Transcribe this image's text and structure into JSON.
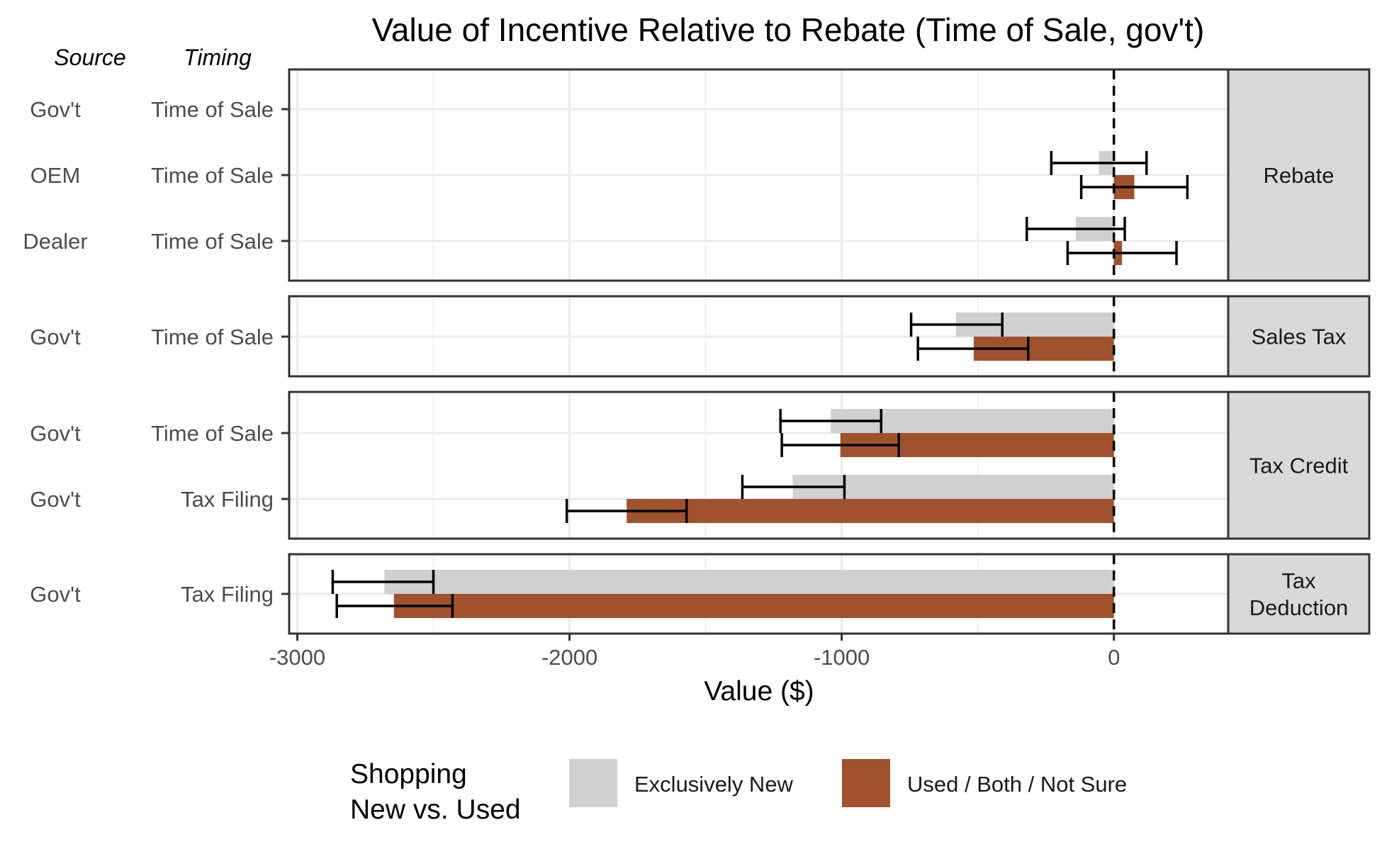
{
  "chart_data": {
    "type": "bar",
    "title": "Value of Incentive Relative to Rebate (Time of Sale, gov't)",
    "xlabel": "Value ($)",
    "row_header_labels": {
      "source": "Source",
      "timing": "Timing"
    },
    "xlim": [
      -3030,
      420
    ],
    "x_ticks": [
      -3000,
      -2000,
      -1000,
      0
    ],
    "x_tick_labels": [
      "-3000",
      "-2000",
      "-1000",
      "0"
    ],
    "grid": true,
    "reference_line": {
      "x": 0,
      "style": "dashed"
    },
    "legend": {
      "title": "Shopping\nNew vs. Used",
      "position": "bottom",
      "entries": [
        {
          "name": "Exclusively New",
          "color": "#d0d0d0"
        },
        {
          "name": "Used / Both / Not Sure",
          "color": "#a0522d"
        }
      ]
    },
    "facets": [
      {
        "name": "Rebate",
        "rows": [
          {
            "source": "Gov't",
            "timing": "Time of Sale",
            "bars": []
          },
          {
            "source": "OEM",
            "timing": "Time of Sale",
            "bars": [
              {
                "series": "Exclusively New",
                "value": -55,
                "ci": [
                  -230,
                  120
                ]
              },
              {
                "series": "Used / Both / Not Sure",
                "value": 75,
                "ci": [
                  -120,
                  270
                ]
              }
            ]
          },
          {
            "source": "Dealer",
            "timing": "Time of Sale",
            "bars": [
              {
                "series": "Exclusively New",
                "value": -140,
                "ci": [
                  -320,
                  40
                ]
              },
              {
                "series": "Used / Both / Not Sure",
                "value": 30,
                "ci": [
                  -170,
                  230
                ]
              }
            ]
          }
        ]
      },
      {
        "name": "Sales Tax",
        "rows": [
          {
            "source": "Gov't",
            "timing": "Time of Sale",
            "bars": [
              {
                "series": "Exclusively New",
                "value": -580,
                "ci": [
                  -745,
                  -410
                ]
              },
              {
                "series": "Used / Both / Not Sure",
                "value": -515,
                "ci": [
                  -720,
                  -315
                ]
              }
            ]
          }
        ]
      },
      {
        "name": "Tax Credit",
        "rows": [
          {
            "source": "Gov't",
            "timing": "Time of Sale",
            "bars": [
              {
                "series": "Exclusively New",
                "value": -1040,
                "ci": [
                  -1225,
                  -855
                ]
              },
              {
                "series": "Used / Both / Not Sure",
                "value": -1005,
                "ci": [
                  -1220,
                  -790
                ]
              }
            ]
          },
          {
            "source": "Gov't",
            "timing": "Tax Filing",
            "bars": [
              {
                "series": "Exclusively New",
                "value": -1180,
                "ci": [
                  -1365,
                  -990
                ]
              },
              {
                "series": "Used / Both / Not Sure",
                "value": -1790,
                "ci": [
                  -2010,
                  -1570
                ]
              }
            ]
          }
        ]
      },
      {
        "name": "Tax\nDeduction",
        "rows": [
          {
            "source": "Gov't",
            "timing": "Tax Filing",
            "bars": [
              {
                "series": "Exclusively New",
                "value": -2680,
                "ci": [
                  -2870,
                  -2500
                ]
              },
              {
                "series": "Used / Both / Not Sure",
                "value": -2645,
                "ci": [
                  -2855,
                  -2430
                ]
              }
            ]
          }
        ]
      }
    ]
  }
}
